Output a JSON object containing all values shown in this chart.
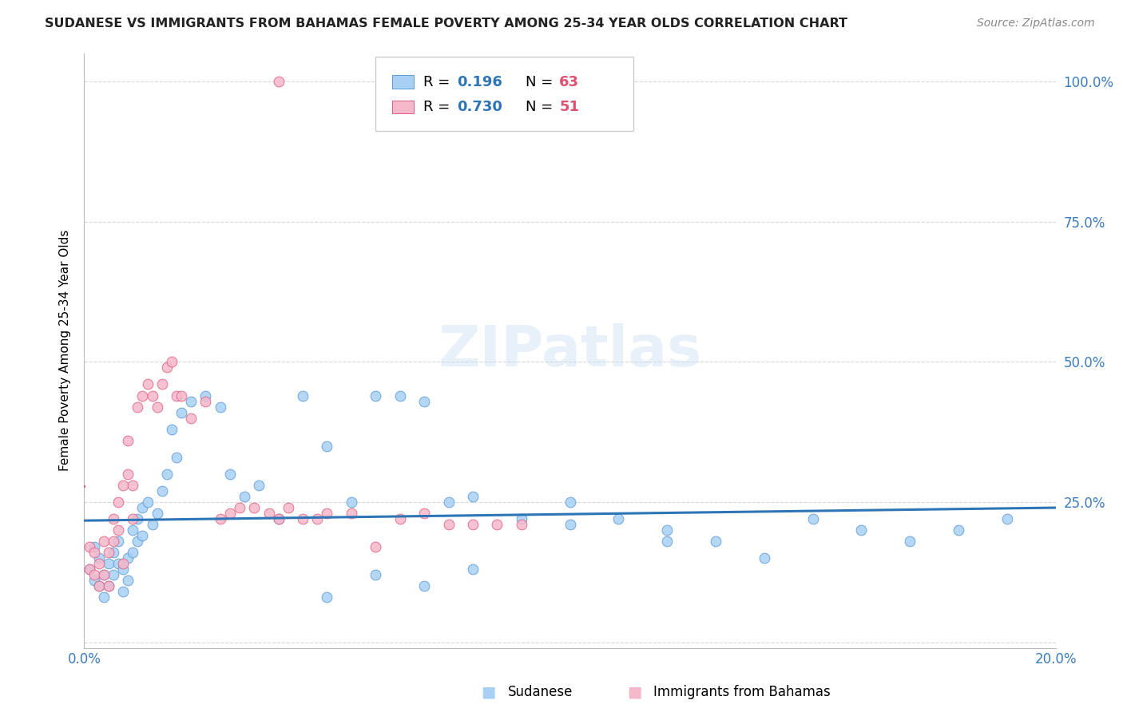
{
  "title": "SUDANESE VS IMMIGRANTS FROM BAHAMAS FEMALE POVERTY AMONG 25-34 YEAR OLDS CORRELATION CHART",
  "source": "Source: ZipAtlas.com",
  "ylabel": "Female Poverty Among 25-34 Year Olds",
  "watermark": "ZIPatlas",
  "r1": 0.196,
  "n1": 63,
  "r2": 0.73,
  "n2": 51,
  "color_sudanese_fill": "#a8d0f5",
  "color_sudanese_edge": "#5b9bd5",
  "color_bahamas_fill": "#f5b8cb",
  "color_bahamas_edge": "#e06080",
  "color_line_sudanese": "#2e75b6",
  "color_line_bahamas": "#e06080",
  "color_r_value": "#2e75b6",
  "color_n_value": "#e05070",
  "title_color": "#222222",
  "source_color": "#888888",
  "axis_label_color": "#3a7abf",
  "sudanese_x": [
    0.001,
    0.002,
    0.002,
    0.003,
    0.003,
    0.004,
    0.004,
    0.005,
    0.005,
    0.006,
    0.006,
    0.007,
    0.007,
    0.008,
    0.008,
    0.009,
    0.009,
    0.01,
    0.01,
    0.011,
    0.011,
    0.012,
    0.012,
    0.013,
    0.014,
    0.015,
    0.016,
    0.017,
    0.018,
    0.019,
    0.02,
    0.022,
    0.025,
    0.028,
    0.03,
    0.033,
    0.036,
    0.04,
    0.045,
    0.05,
    0.055,
    0.06,
    0.065,
    0.07,
    0.075,
    0.08,
    0.09,
    0.1,
    0.11,
    0.12,
    0.13,
    0.14,
    0.15,
    0.16,
    0.17,
    0.18,
    0.19,
    0.08,
    0.1,
    0.12,
    0.06,
    0.07,
    0.05
  ],
  "sudanese_y": [
    0.13,
    0.11,
    0.17,
    0.1,
    0.15,
    0.12,
    0.08,
    0.14,
    0.1,
    0.16,
    0.12,
    0.18,
    0.14,
    0.13,
    0.09,
    0.15,
    0.11,
    0.2,
    0.16,
    0.22,
    0.18,
    0.24,
    0.19,
    0.25,
    0.21,
    0.23,
    0.27,
    0.3,
    0.38,
    0.33,
    0.41,
    0.43,
    0.44,
    0.42,
    0.3,
    0.26,
    0.28,
    0.22,
    0.44,
    0.35,
    0.25,
    0.44,
    0.44,
    0.43,
    0.25,
    0.26,
    0.22,
    0.25,
    0.22,
    0.2,
    0.18,
    0.15,
    0.22,
    0.2,
    0.18,
    0.2,
    0.22,
    0.13,
    0.21,
    0.18,
    0.12,
    0.1,
    0.08
  ],
  "bahamas_x": [
    0.001,
    0.001,
    0.002,
    0.002,
    0.003,
    0.003,
    0.004,
    0.004,
    0.005,
    0.005,
    0.006,
    0.006,
    0.007,
    0.007,
    0.008,
    0.008,
    0.009,
    0.009,
    0.01,
    0.01,
    0.011,
    0.012,
    0.013,
    0.014,
    0.015,
    0.016,
    0.017,
    0.018,
    0.019,
    0.02,
    0.022,
    0.025,
    0.028,
    0.03,
    0.032,
    0.035,
    0.038,
    0.04,
    0.042,
    0.045,
    0.048,
    0.05,
    0.055,
    0.06,
    0.065,
    0.07,
    0.075,
    0.08,
    0.085,
    0.09,
    0.04
  ],
  "bahamas_y": [
    0.13,
    0.17,
    0.12,
    0.16,
    0.1,
    0.14,
    0.18,
    0.12,
    0.16,
    0.1,
    0.22,
    0.18,
    0.2,
    0.25,
    0.14,
    0.28,
    0.3,
    0.36,
    0.22,
    0.28,
    0.42,
    0.44,
    0.46,
    0.44,
    0.42,
    0.46,
    0.49,
    0.5,
    0.44,
    0.44,
    0.4,
    0.43,
    0.22,
    0.23,
    0.24,
    0.24,
    0.23,
    0.22,
    0.24,
    0.22,
    0.22,
    0.23,
    0.23,
    0.17,
    0.22,
    0.23,
    0.21,
    0.21,
    0.21,
    0.21,
    1.0
  ],
  "xmin": 0.0,
  "xmax": 0.2,
  "ymin": -0.01,
  "ymax": 1.05,
  "figwidth": 14.06,
  "figheight": 8.92
}
